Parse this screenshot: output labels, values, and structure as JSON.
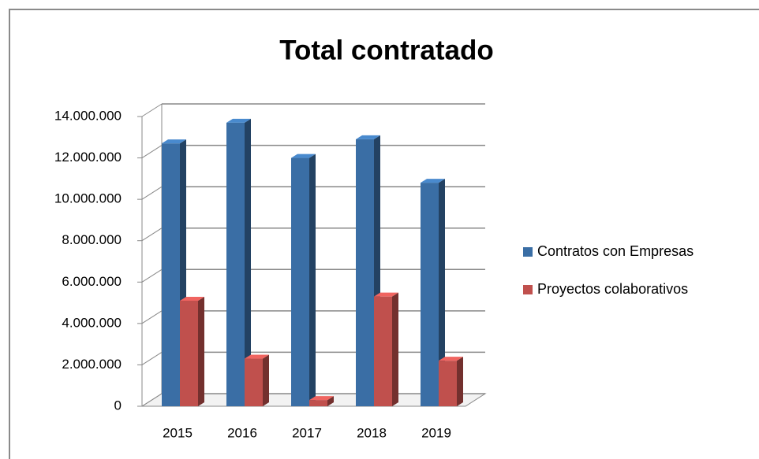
{
  "chart_data": {
    "type": "bar",
    "title": "Total contratado",
    "categories": [
      "2015",
      "2016",
      "2017",
      "2018",
      "2019"
    ],
    "series": [
      {
        "name": "Contratos con Empresas",
        "color": "#3a6ea5",
        "values": [
          12700000,
          13700000,
          12000000,
          12900000,
          10800000
        ]
      },
      {
        "name": "Proyectos colaborativos",
        "color": "#c0504d",
        "values": [
          5100000,
          2300000,
          300000,
          5300000,
          2200000
        ]
      }
    ],
    "ylim": [
      0,
      14000000
    ],
    "yticks": [
      0,
      {
        "value": 2000000,
        "label": "2.000.000"
      },
      {
        "value": 4000000,
        "label": "4.000.000"
      },
      {
        "value": 6000000,
        "label": "6.000.000"
      },
      {
        "value": 8000000,
        "label": "8.000.000"
      },
      {
        "value": 10000000,
        "label": "10.000.000"
      },
      {
        "value": 12000000,
        "label": "12.000.000"
      },
      {
        "value": 14000000,
        "label": "14.000.000"
      }
    ],
    "grid": true,
    "legend": "right"
  }
}
